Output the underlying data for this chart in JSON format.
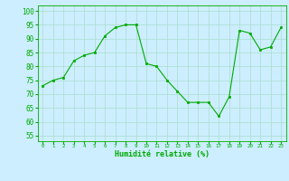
{
  "x": [
    0,
    1,
    2,
    3,
    4,
    5,
    6,
    7,
    8,
    9,
    10,
    11,
    12,
    13,
    14,
    15,
    16,
    17,
    18,
    19,
    20,
    21,
    22,
    23
  ],
  "y": [
    73,
    75,
    76,
    82,
    84,
    85,
    91,
    94,
    95,
    95,
    81,
    80,
    75,
    71,
    67,
    67,
    67,
    62,
    69,
    93,
    92,
    86,
    87,
    94
  ],
  "xlabel": "Humidité relative (%)",
  "ylabel_ticks": [
    55,
    60,
    65,
    70,
    75,
    80,
    85,
    90,
    95,
    100
  ],
  "xlim": [
    -0.5,
    23.5
  ],
  "ylim": [
    53,
    102
  ],
  "line_color": "#00aa00",
  "marker_color": "#00aa00",
  "bg_color": "#cceeff",
  "grid_color": "#aaddcc",
  "tick_color": "#00aa00",
  "label_color": "#00aa00",
  "figsize": [
    3.2,
    2.0
  ],
  "dpi": 100
}
